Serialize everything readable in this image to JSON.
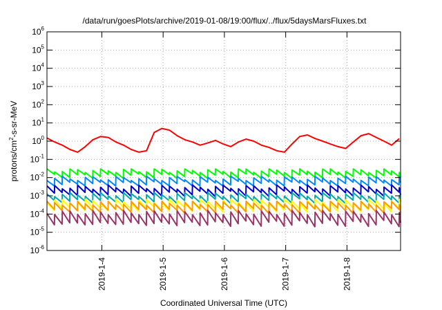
{
  "chart_data": {
    "type": "line",
    "title": "/data/run/goesPlots/archive/2019-01-08/19:00/flux/../flux/5daysMarsFluxes.txt",
    "xlabel": "Coordinated Universal Time (UTC)",
    "ylabel": {
      "base": "protons/cm",
      "sup": "2",
      "rest": "-s-sr-MeV"
    },
    "y_scale": "log",
    "ylim_exponents": [
      -6,
      6
    ],
    "y_tick_exponents": [
      -6,
      -5,
      -4,
      -3,
      -2,
      -1,
      0,
      1,
      2,
      3,
      4,
      5,
      6
    ],
    "xlim": [
      "2019-01-03T02:30",
      "2019-01-08T21:00"
    ],
    "x_ticks": [
      "2019-1-4",
      "2019-1-5",
      "2019-1-6",
      "2019-1-7",
      "2019-1-8"
    ],
    "x_tick_dates": [
      "2019-01-04T00:00",
      "2019-01-05T00:00",
      "2019-01-06T00:00",
      "2019-01-07T00:00",
      "2019-01-08T00:00"
    ],
    "grid": true,
    "legend": "none",
    "series": [
      {
        "color": "#ff0000",
        "x": [
          "2019-01-03T02:30",
          "2019-01-03T05:30",
          "2019-01-03T08:30",
          "2019-01-03T11:30",
          "2019-01-03T14:30",
          "2019-01-03T17:30",
          "2019-01-03T20:30",
          "2019-01-03T23:30",
          "2019-01-04T02:30",
          "2019-01-04T05:30",
          "2019-01-04T08:30",
          "2019-01-04T11:30",
          "2019-01-04T14:30",
          "2019-01-04T17:30",
          "2019-01-04T20:30",
          "2019-01-04T23:30",
          "2019-01-05T02:30",
          "2019-01-05T05:30",
          "2019-01-05T08:30",
          "2019-01-05T11:30",
          "2019-01-05T14:30",
          "2019-01-05T17:30",
          "2019-01-05T20:30",
          "2019-01-05T23:30",
          "2019-01-06T02:30",
          "2019-01-06T05:30",
          "2019-01-06T08:30",
          "2019-01-06T11:30",
          "2019-01-06T14:30",
          "2019-01-06T17:30",
          "2019-01-06T20:30",
          "2019-01-06T23:30",
          "2019-01-07T02:30",
          "2019-01-07T05:30",
          "2019-01-07T08:30",
          "2019-01-07T11:30",
          "2019-01-07T14:30",
          "2019-01-07T17:30",
          "2019-01-07T20:30",
          "2019-01-07T23:30",
          "2019-01-08T02:30",
          "2019-01-08T05:30",
          "2019-01-08T08:30",
          "2019-01-08T11:30",
          "2019-01-08T14:30",
          "2019-01-08T17:30",
          "2019-01-08T20:30"
        ],
        "y": [
          1.5,
          0.9,
          0.6,
          0.35,
          0.25,
          0.5,
          1.2,
          1.8,
          1.6,
          0.9,
          0.6,
          0.35,
          0.25,
          0.3,
          3.0,
          5.0,
          4.0,
          2.0,
          1.2,
          0.9,
          0.6,
          0.8,
          1.1,
          0.7,
          0.5,
          0.9,
          1.3,
          1.0,
          0.6,
          0.45,
          0.3,
          0.25,
          0.7,
          1.8,
          2.2,
          1.4,
          1.0,
          0.7,
          0.5,
          0.4,
          0.9,
          2.0,
          2.6,
          1.6,
          1.0,
          0.6,
          1.4
        ]
      },
      {
        "color": "#00ff00",
        "base": 0.025,
        "min": 0.009,
        "max": 0.03
      },
      {
        "color": "#0088ff",
        "base": 0.009,
        "min": 0.0035,
        "max": 0.012
      },
      {
        "color": "#0000cc",
        "base": 0.003,
        "min": 0.0009,
        "max": 0.004
      },
      {
        "color": "#00aaaa",
        "base": 0.0012,
        "min": 0.00035,
        "max": 0.0015
      },
      {
        "color": "#ffff00",
        "base": 0.0005,
        "min": 0.00012,
        "max": 0.0007
      },
      {
        "color": "#ff9900",
        "base": 0.0004,
        "min": 9e-05,
        "max": 0.0005
      },
      {
        "color": "#993366",
        "base": 0.00012,
        "min": 1.5e-05,
        "max": 0.0002
      }
    ]
  }
}
